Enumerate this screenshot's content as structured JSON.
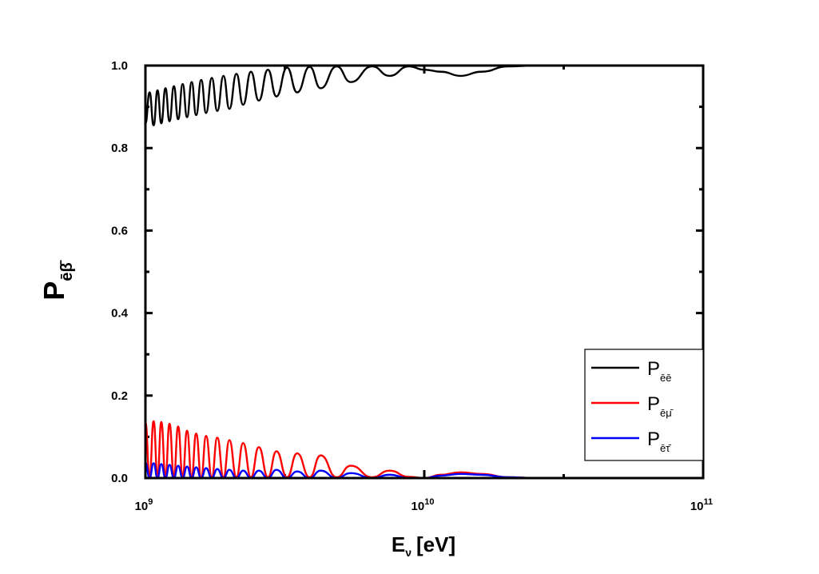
{
  "chart_data": {
    "type": "line",
    "xscale": "log",
    "xlim": [
      1000000000.0,
      100000000000.0
    ],
    "ylim": [
      0.0,
      1.0
    ],
    "xlabel": {
      "main": "E",
      "sub": "ν",
      "unit": "[eV]"
    },
    "ylabel": {
      "main": "P",
      "sub": "ēβ̄"
    },
    "x_ticks": [
      {
        "value": 1000000000.0,
        "base": "10",
        "exp": "9"
      },
      {
        "value": 10000000000.0,
        "base": "10",
        "exp": "10"
      },
      {
        "value": 100000000000.0,
        "base": "10",
        "exp": "11"
      }
    ],
    "y_ticks": [
      {
        "value": 0.0,
        "label": "0.0"
      },
      {
        "value": 0.2,
        "label": "0.2"
      },
      {
        "value": 0.4,
        "label": "0.4"
      },
      {
        "value": 0.6,
        "label": "0.6"
      },
      {
        "value": 0.8,
        "label": "0.8"
      },
      {
        "value": 1.0,
        "label": "1.0"
      }
    ],
    "legend_position": "bottom-right",
    "series": [
      {
        "name": "P",
        "name_sub": "ēē",
        "color": "#000000",
        "x": [
          1000000000.0,
          1035000000.0,
          1070000000.0,
          1105000000.0,
          1140000000.0,
          1180000000.0,
          1220000000.0,
          1265000000.0,
          1310000000.0,
          1360000000.0,
          1410000000.0,
          1465000000.0,
          1520000000.0,
          1585000000.0,
          1650000000.0,
          1730000000.0,
          1810000000.0,
          1905000000.0,
          2000000000.0,
          2120000000.0,
          2240000000.0,
          2390000000.0,
          2550000000.0,
          2750000000.0,
          2950000000.0,
          3220000000.0,
          3500000000.0,
          3880000000.0,
          4250000000.0,
          4850000000.0,
          5450000000.0,
          6500000000.0,
          7500000000.0,
          8800000000.0,
          10000000000.0,
          11500000000.0,
          13500000000.0,
          16000000000.0,
          20000000000.0,
          25000000000.0,
          30000000000.0,
          50000000000.0,
          100000000000.0
        ],
        "y": [
          0.86,
          0.935,
          0.855,
          0.94,
          0.86,
          0.945,
          0.865,
          0.95,
          0.87,
          0.955,
          0.875,
          0.96,
          0.88,
          0.965,
          0.885,
          0.97,
          0.89,
          0.975,
          0.895,
          0.98,
          0.905,
          0.985,
          0.915,
          0.99,
          0.925,
          0.995,
          0.935,
          0.997,
          0.945,
          0.998,
          0.96,
          0.998,
          0.975,
          0.998,
          0.99,
          0.985,
          0.975,
          0.985,
          0.998,
          1.0,
          1.0,
          1.0,
          1.0
        ]
      },
      {
        "name": "P",
        "name_sub": "ēμ̄",
        "color": "#ff0000",
        "x": [
          1000000000.0,
          1035000000.0,
          1070000000.0,
          1105000000.0,
          1140000000.0,
          1180000000.0,
          1220000000.0,
          1265000000.0,
          1310000000.0,
          1360000000.0,
          1410000000.0,
          1465000000.0,
          1520000000.0,
          1585000000.0,
          1650000000.0,
          1730000000.0,
          1810000000.0,
          1905000000.0,
          2000000000.0,
          2120000000.0,
          2240000000.0,
          2390000000.0,
          2550000000.0,
          2750000000.0,
          2950000000.0,
          3220000000.0,
          3500000000.0,
          3880000000.0,
          4250000000.0,
          4850000000.0,
          5450000000.0,
          6500000000.0,
          7500000000.0,
          8800000000.0,
          10000000000.0,
          11500000000.0,
          13500000000.0,
          16000000000.0,
          20000000000.0,
          25000000000.0,
          30000000000.0,
          50000000000.0,
          100000000000.0
        ],
        "y": [
          0.135,
          0.002,
          0.138,
          0.002,
          0.136,
          0.002,
          0.132,
          0.002,
          0.125,
          0.002,
          0.115,
          0.002,
          0.108,
          0.002,
          0.102,
          0.002,
          0.098,
          0.002,
          0.092,
          0.002,
          0.085,
          0.002,
          0.075,
          0.002,
          0.065,
          0.002,
          0.06,
          0.002,
          0.055,
          0.002,
          0.03,
          0.002,
          0.018,
          0.003,
          0.0,
          0.008,
          0.014,
          0.01,
          0.002,
          0.0,
          0.0,
          0.0,
          0.0
        ]
      },
      {
        "name": "P",
        "name_sub": "ēτ̄",
        "color": "#0000ff",
        "x": [
          1000000000.0,
          1035000000.0,
          1070000000.0,
          1105000000.0,
          1140000000.0,
          1180000000.0,
          1220000000.0,
          1265000000.0,
          1310000000.0,
          1360000000.0,
          1410000000.0,
          1465000000.0,
          1520000000.0,
          1585000000.0,
          1650000000.0,
          1730000000.0,
          1810000000.0,
          1905000000.0,
          2000000000.0,
          2120000000.0,
          2240000000.0,
          2390000000.0,
          2550000000.0,
          2750000000.0,
          2950000000.0,
          3220000000.0,
          3500000000.0,
          3880000000.0,
          4250000000.0,
          4850000000.0,
          5450000000.0,
          6500000000.0,
          7500000000.0,
          8800000000.0,
          10000000000.0,
          11500000000.0,
          13500000000.0,
          16000000000.0,
          20000000000.0,
          25000000000.0,
          30000000000.0,
          50000000000.0,
          100000000000.0
        ],
        "y": [
          0.038,
          0.0,
          0.036,
          0.0,
          0.034,
          0.0,
          0.032,
          0.0,
          0.03,
          0.0,
          0.028,
          0.0,
          0.026,
          0.0,
          0.024,
          0.0,
          0.022,
          0.0,
          0.02,
          0.0,
          0.018,
          0.0,
          0.018,
          0.0,
          0.02,
          0.0,
          0.016,
          0.0,
          0.018,
          0.0,
          0.012,
          0.0,
          0.008,
          0.0,
          0.0,
          0.006,
          0.01,
          0.008,
          0.002,
          0.0,
          0.0,
          0.0,
          0.0
        ]
      }
    ]
  }
}
